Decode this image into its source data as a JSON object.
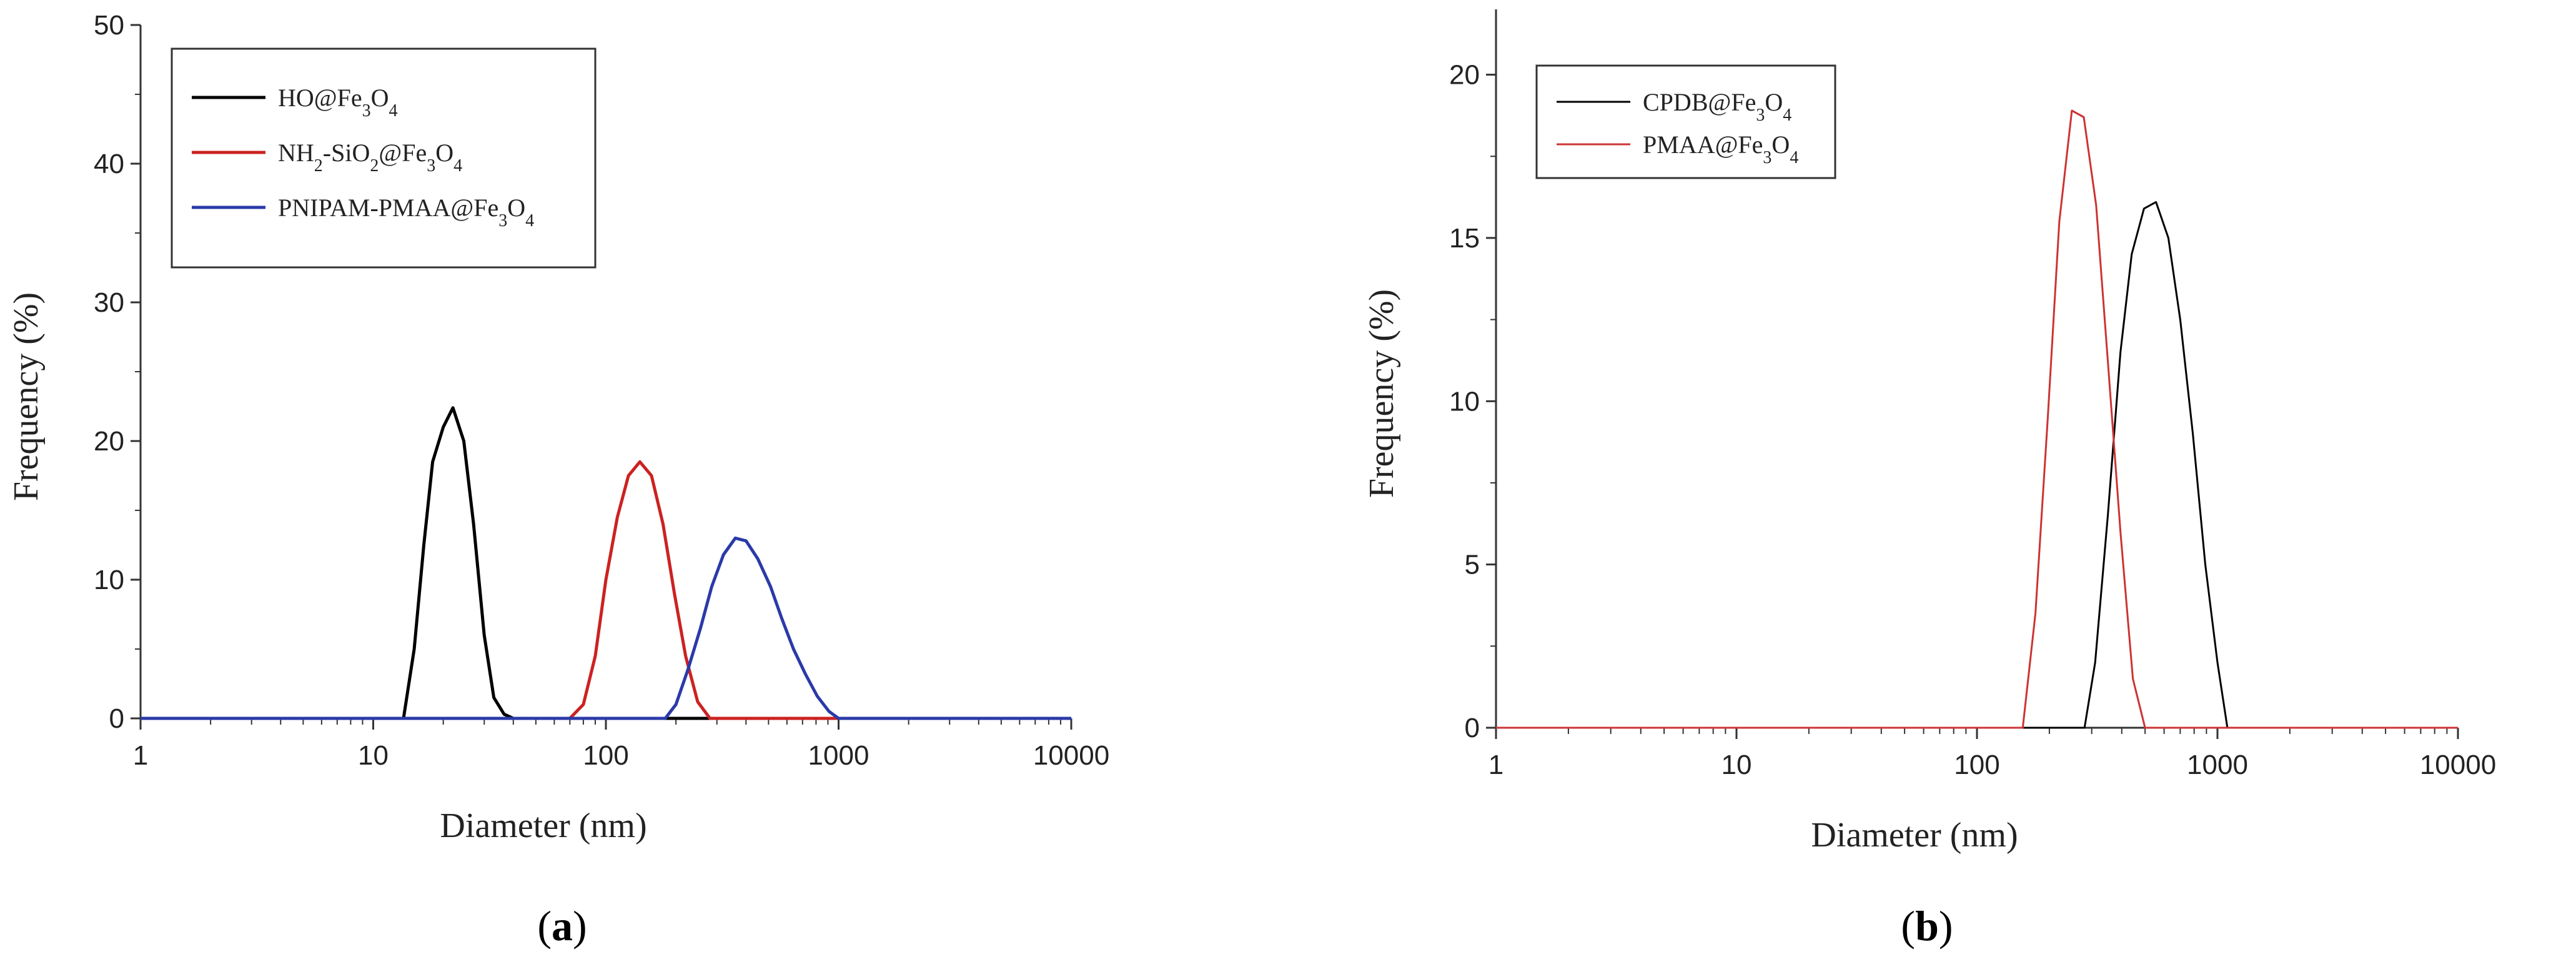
{
  "chart_data": [
    {
      "type": "line",
      "panel_label": "a",
      "xlabel": "Diameter (nm)",
      "ylabel": "Frequency (%)",
      "xscale": "log",
      "xlim": [
        1,
        10000
      ],
      "ylim": [
        0,
        50
      ],
      "xticks": [
        "1",
        "10",
        "100",
        "1000",
        "10000"
      ],
      "yticks": [
        "0",
        "10",
        "20",
        "30",
        "40",
        "50"
      ],
      "grid": false,
      "legend_position": "top-left",
      "series": [
        {
          "name": "HO@Fe3O4",
          "legend": {
            "base": "HO@Fe",
            "s1": "3",
            "mid": "O",
            "s2": "4",
            "tail": ""
          },
          "color": "#000000",
          "x": [
            1,
            10,
            13.5,
            15,
            16.5,
            18,
            20,
            22,
            24.5,
            27,
            30,
            33,
            36.5,
            40,
            10000
          ],
          "y": [
            0,
            0,
            0,
            5.0,
            12.5,
            18.5,
            21.0,
            22.4,
            20.0,
            14.0,
            6.0,
            1.5,
            0.3,
            0,
            0
          ]
        },
        {
          "name": "NH2-SiO2@Fe3O4",
          "legend": {
            "base": "NH",
            "s1": "2",
            "mid": "-SiO",
            "s2": "2",
            "tail": "@Fe",
            "s3": "3",
            "mid2": "O",
            "s4": "4"
          },
          "color": "#cc2222",
          "x": [
            1,
            70,
            80,
            90,
            100,
            112,
            125,
            140,
            157,
            176,
            197,
            220,
            248,
            280,
            10000
          ],
          "y": [
            0,
            0,
            1.0,
            4.5,
            10.0,
            14.5,
            17.5,
            18.5,
            17.5,
            14.0,
            9.0,
            4.5,
            1.2,
            0,
            0
          ]
        },
        {
          "name": "PNIPAM-PMAA@Fe3O4",
          "legend": {
            "base": "PNIPAM-PMAA@Fe",
            "s1": "3",
            "mid": "O",
            "s2": "4",
            "tail": ""
          },
          "color": "#2b3aa8",
          "x": [
            1,
            180,
            200,
            225,
            255,
            285,
            320,
            360,
            400,
            450,
            510,
            570,
            640,
            720,
            810,
            910,
            1000,
            10000
          ],
          "y": [
            0,
            0,
            1.0,
            3.5,
            6.5,
            9.5,
            11.8,
            13.0,
            12.8,
            11.5,
            9.5,
            7.2,
            5.0,
            3.2,
            1.6,
            0.5,
            0,
            0
          ]
        }
      ]
    },
    {
      "type": "line",
      "panel_label": "b",
      "xlabel": "Diameter (nm)",
      "ylabel": "Frequency (%)",
      "xscale": "log",
      "xlim": [
        1,
        10000
      ],
      "ylim": [
        0,
        22
      ],
      "xticks": [
        "1",
        "10",
        "100",
        "1000",
        "10000"
      ],
      "yticks": [
        "0",
        "5",
        "10",
        "15",
        "20"
      ],
      "grid": false,
      "legend_position": "top-left",
      "series": [
        {
          "name": "CPDB@Fe3O4",
          "legend": {
            "base": "CPDB@Fe",
            "s1": "3",
            "mid": "O",
            "s2": "4",
            "tail": ""
          },
          "color": "#000000",
          "x": [
            1,
            280,
            310,
            350,
            395,
            440,
            495,
            555,
            625,
            700,
            790,
            890,
            1000,
            1100,
            10000
          ],
          "y": [
            0,
            0,
            2.0,
            6.5,
            11.5,
            14.5,
            15.9,
            16.1,
            15.0,
            12.5,
            9.0,
            5.0,
            2.0,
            0,
            0
          ]
        },
        {
          "name": "PMAA@Fe3O4",
          "legend": {
            "base": "PMAA@Fe",
            "s1": "3",
            "mid": "O",
            "s2": "4",
            "tail": ""
          },
          "color": "#cc3333",
          "x": [
            1,
            155,
            175,
            197,
            220,
            248,
            278,
            313,
            352,
            395,
            445,
            500,
            10000
          ],
          "y": [
            0,
            0,
            3.5,
            9.5,
            15.5,
            18.9,
            18.7,
            16.0,
            11.0,
            6.0,
            1.5,
            0,
            0
          ]
        }
      ]
    }
  ]
}
